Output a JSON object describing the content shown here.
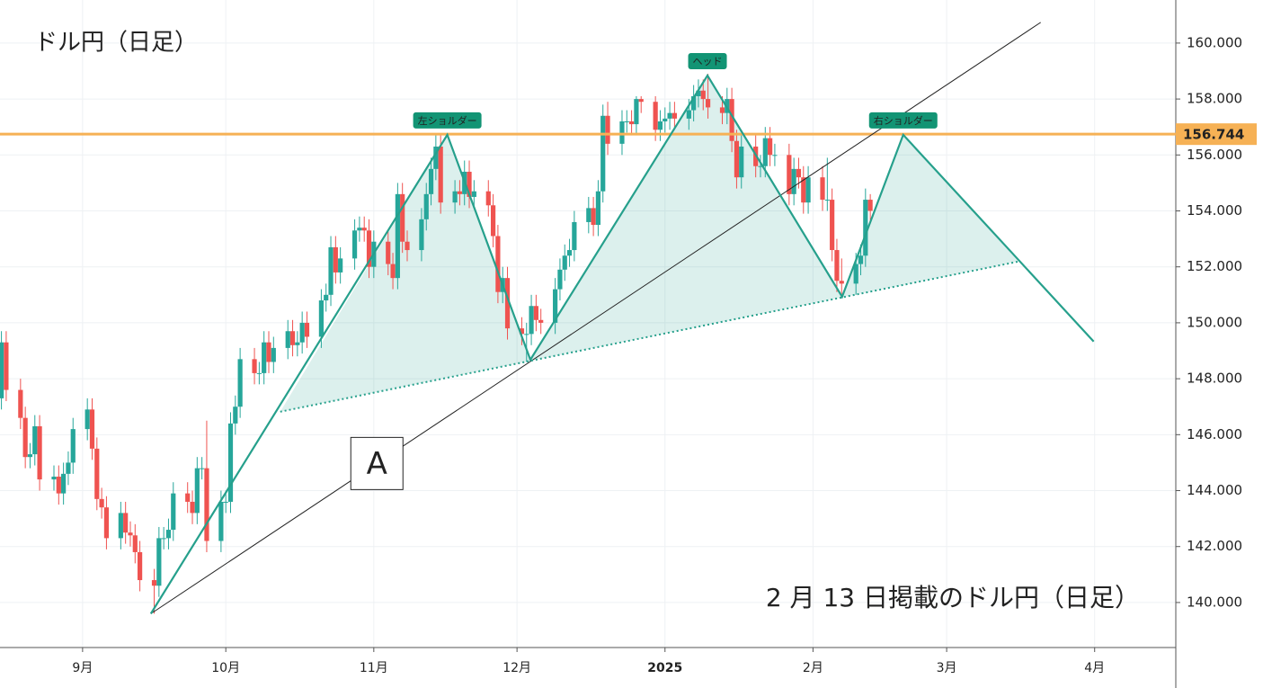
{
  "chart_data": {
    "type": "candlestick",
    "title": "ドル円（日足）",
    "caption": "2 月 13 日掲載のドル円（日足）",
    "up_color": "#26a69a",
    "down_color": "#ef5350",
    "x": [
      14,
      15,
      18,
      19,
      20,
      21,
      22,
      25,
      26,
      27,
      28,
      29,
      32,
      33,
      34,
      35,
      36,
      39,
      40,
      41,
      42,
      43,
      46,
      47,
      48,
      49,
      50,
      53,
      54,
      55,
      56,
      57,
      60,
      61,
      62,
      63,
      64,
      67,
      68,
      69,
      70,
      71,
      74,
      75,
      76,
      77,
      78,
      81,
      82,
      83,
      84,
      85,
      88,
      89,
      90,
      91,
      92,
      95,
      96,
      97,
      98,
      99,
      102,
      103,
      104,
      105,
      106,
      109,
      110,
      111,
      112,
      113,
      116,
      117,
      118,
      119,
      120,
      123,
      124,
      125,
      126,
      127,
      130,
      131,
      132,
      133,
      134,
      137,
      138,
      139,
      140,
      141,
      144,
      145,
      146,
      147,
      148,
      151,
      152,
      153,
      154,
      155,
      158,
      159,
      160,
      161,
      162,
      165,
      166,
      167,
      168,
      169,
      172,
      173,
      174,
      175,
      176,
      179,
      180,
      181,
      182,
      183,
      186,
      187,
      188,
      189,
      190,
      193,
      194,
      195,
      196
    ],
    "open": [
      147.3,
      149.3,
      147.6,
      146.6,
      145.2,
      145.3,
      146.3,
      144.4,
      144.5,
      143.9,
      144.6,
      145.0,
      146.2,
      146.9,
      145.5,
      143.7,
      143.4,
      142.3,
      143.2,
      142.5,
      142.4,
      141.8,
      140.8,
      140.6,
      142.3,
      142.3,
      142.6,
      143.9,
      143.6,
      143.2,
      144.8,
      144.8,
      142.2,
      143.6,
      143.6,
      146.4,
      147.0,
      148.7,
      148.2,
      148.2,
      149.3,
      148.6,
      149.1,
      149.7,
      149.2,
      149.3,
      150.0,
      149.5,
      150.8,
      151.0,
      152.7,
      151.8,
      152.3,
      153.3,
      153.4,
      153.3,
      152.0,
      152.9,
      152.1,
      151.6,
      154.6,
      152.9,
      152.6,
      153.7,
      154.6,
      155.5,
      156.3,
      154.3,
      154.7,
      154.6,
      155.4,
      154.5,
      154.7,
      154.2,
      153.1,
      151.1,
      151.6,
      149.8,
      149.6,
      149.6,
      150.6,
      150.1,
      150.0,
      151.2,
      151.9,
      152.4,
      152.6,
      153.6,
      154.1,
      153.5,
      154.7,
      157.4,
      156.4,
      157.2,
      157.2,
      157.1,
      158.0,
      157.9,
      156.9,
      157.2,
      157.3,
      157.5,
      157.3,
      157.6,
      158.1,
      158.3,
      158.0,
      157.7,
      157.5,
      158.0,
      156.5,
      155.2,
      156.3,
      155.6,
      155.6,
      156.6,
      156.0,
      156.0,
      154.6,
      155.5,
      155.2,
      154.3,
      155.2,
      154.4,
      154.4,
      152.6,
      151.5,
      151.4,
      152.1,
      152.4,
      154.4
    ],
    "high": [
      149.7,
      149.7,
      148.0,
      147.0,
      145.7,
      146.7,
      146.7,
      144.9,
      144.9,
      145.0,
      145.4,
      146.6,
      147.3,
      147.3,
      145.9,
      144.1,
      143.8,
      143.6,
      143.6,
      142.9,
      142.8,
      142.2,
      141.2,
      142.7,
      142.7,
      143.0,
      144.3,
      144.3,
      144.0,
      145.2,
      145.2,
      146.5,
      144.0,
      144.0,
      146.8,
      147.4,
      149.1,
      149.1,
      148.6,
      149.7,
      149.7,
      149.5,
      150.1,
      150.1,
      149.7,
      150.4,
      150.4,
      151.2,
      151.4,
      153.1,
      153.1,
      152.7,
      153.7,
      153.8,
      153.8,
      153.7,
      153.3,
      153.3,
      152.5,
      155.0,
      155.0,
      153.3,
      154.1,
      155.0,
      155.9,
      156.7,
      156.7,
      155.1,
      155.1,
      155.8,
      155.8,
      155.1,
      155.1,
      154.6,
      153.5,
      152.0,
      152.0,
      150.2,
      150.0,
      151.0,
      151.0,
      150.5,
      151.6,
      152.3,
      152.8,
      153.0,
      154.0,
      154.5,
      154.5,
      155.1,
      157.8,
      157.9,
      157.6,
      157.6,
      157.6,
      158.1,
      158.1,
      158.1,
      157.6,
      157.7,
      157.9,
      157.9,
      158.0,
      158.5,
      158.7,
      158.7,
      158.9,
      158.1,
      158.4,
      158.4,
      156.9,
      156.7,
      156.7,
      156.0,
      157.0,
      157.0,
      156.4,
      156.4,
      155.9,
      155.9,
      155.6,
      155.6,
      155.6,
      155.9,
      154.8,
      153.0,
      152.3,
      152.5,
      152.8,
      154.8,
      154.6
    ],
    "low": [
      146.9,
      147.2,
      146.2,
      144.8,
      144.8,
      144.9,
      144.0,
      144.0,
      143.5,
      143.5,
      144.2,
      144.6,
      145.8,
      145.1,
      143.3,
      143.0,
      141.9,
      141.9,
      142.1,
      142.0,
      141.4,
      140.4,
      139.6,
      140.2,
      141.9,
      141.9,
      142.2,
      143.2,
      142.8,
      142.8,
      144.4,
      141.8,
      141.8,
      143.2,
      143.2,
      146.0,
      146.6,
      147.8,
      147.8,
      147.8,
      148.2,
      148.2,
      148.7,
      148.8,
      148.8,
      148.9,
      149.1,
      149.1,
      150.4,
      150.6,
      151.4,
      151.4,
      151.9,
      152.9,
      152.9,
      151.6,
      151.6,
      151.7,
      151.2,
      151.2,
      152.5,
      152.2,
      152.2,
      153.3,
      154.2,
      155.1,
      153.9,
      153.9,
      154.2,
      154.2,
      154.1,
      154.1,
      153.8,
      152.7,
      150.7,
      150.7,
      149.4,
      149.2,
      148.6,
      149.2,
      149.7,
      149.6,
      149.6,
      150.8,
      151.5,
      152.0,
      152.2,
      153.2,
      153.1,
      153.1,
      154.3,
      156.0,
      156.0,
      156.8,
      156.7,
      156.7,
      157.5,
      156.5,
      156.5,
      156.8,
      156.9,
      156.9,
      156.9,
      157.2,
      157.7,
      157.6,
      157.3,
      157.1,
      157.1,
      156.1,
      154.8,
      154.8,
      155.2,
      155.2,
      155.2,
      155.6,
      155.6,
      154.2,
      154.2,
      154.8,
      153.9,
      153.9,
      154.0,
      154.0,
      152.2,
      151.1,
      151.0,
      151.0,
      151.7,
      152.0,
      153.6
    ],
    "close": [
      149.3,
      147.6,
      146.6,
      145.2,
      145.3,
      146.3,
      144.4,
      144.5,
      143.9,
      144.6,
      145.0,
      146.2,
      146.9,
      145.5,
      143.7,
      143.4,
      142.3,
      143.2,
      142.5,
      142.4,
      141.8,
      140.8,
      140.6,
      142.3,
      142.3,
      142.6,
      143.9,
      143.6,
      143.2,
      144.8,
      144.8,
      142.2,
      143.6,
      143.6,
      146.4,
      147.0,
      148.7,
      148.2,
      148.2,
      149.3,
      148.6,
      149.1,
      149.7,
      149.2,
      149.3,
      150.0,
      149.5,
      150.8,
      151.0,
      152.7,
      151.8,
      152.3,
      153.3,
      153.4,
      153.3,
      152.0,
      152.9,
      152.1,
      151.6,
      154.6,
      152.9,
      152.6,
      153.7,
      154.6,
      155.5,
      156.3,
      154.3,
      154.7,
      154.6,
      155.4,
      154.5,
      154.7,
      154.2,
      153.1,
      151.1,
      151.6,
      149.8,
      149.6,
      149.6,
      150.6,
      150.1,
      150.0,
      151.2,
      151.9,
      152.4,
      152.6,
      153.6,
      154.1,
      153.5,
      154.7,
      157.4,
      156.4,
      157.2,
      157.2,
      157.1,
      158.0,
      157.9,
      156.9,
      157.2,
      157.3,
      157.5,
      157.3,
      157.6,
      158.1,
      158.3,
      158.0,
      157.7,
      157.5,
      158.0,
      156.5,
      155.2,
      156.3,
      155.6,
      155.6,
      156.6,
      156.0,
      156.0,
      154.6,
      155.5,
      155.2,
      154.3,
      155.2,
      154.4,
      154.4,
      152.6,
      151.5,
      151.4,
      152.1,
      152.4,
      154.4,
      154.0
    ],
    "xlim": [
      13.7,
      260
    ],
    "ylim": [
      138.39,
      161.54
    ],
    "grid": true,
    "xticks": [
      {
        "value": 31,
        "label": "9月"
      },
      {
        "value": 61,
        "label": "10月"
      },
      {
        "value": 92,
        "label": "11月"
      },
      {
        "value": 122,
        "label": "12月"
      },
      {
        "value": 153,
        "label": "2025"
      },
      {
        "value": 184,
        "label": "2月"
      },
      {
        "value": 212,
        "label": "3月"
      },
      {
        "value": 243,
        "label": "4月"
      }
    ],
    "yticks": [
      {
        "value": 140,
        "label": "140.000"
      },
      {
        "value": 142,
        "label": "142.000"
      },
      {
        "value": 144,
        "label": "144.000"
      },
      {
        "value": 146,
        "label": "146.000"
      },
      {
        "value": 148,
        "label": "148.000"
      },
      {
        "value": 150,
        "label": "150.000"
      },
      {
        "value": 152,
        "label": "152.000"
      },
      {
        "value": 154,
        "label": "154.000"
      },
      {
        "value": 156,
        "label": "156.000"
      },
      {
        "value": 158,
        "label": "158.000"
      },
      {
        "value": 160,
        "label": "160.000"
      }
    ],
    "hline": {
      "value": 156.744,
      "color": "#f6b155"
    },
    "pattern": {
      "color": "#26a08c",
      "x": [
        45.3,
        107.4,
        124.8,
        161.9,
        190.1,
        202.9,
        242.8
      ],
      "y": [
        139.6,
        156.72,
        148.68,
        158.84,
        150.93,
        156.72,
        149.33
      ],
      "labels": [
        "左ショルダー",
        "ヘッド",
        "右ショルダー"
      ]
    },
    "neckline": {
      "x": [
        72.4,
        227.0
      ],
      "y": [
        146.82,
        152.19
      ]
    },
    "trendline": {
      "label": "A",
      "x": [
        45.3,
        231.7
      ],
      "y": [
        139.6,
        160.74
      ]
    }
  }
}
